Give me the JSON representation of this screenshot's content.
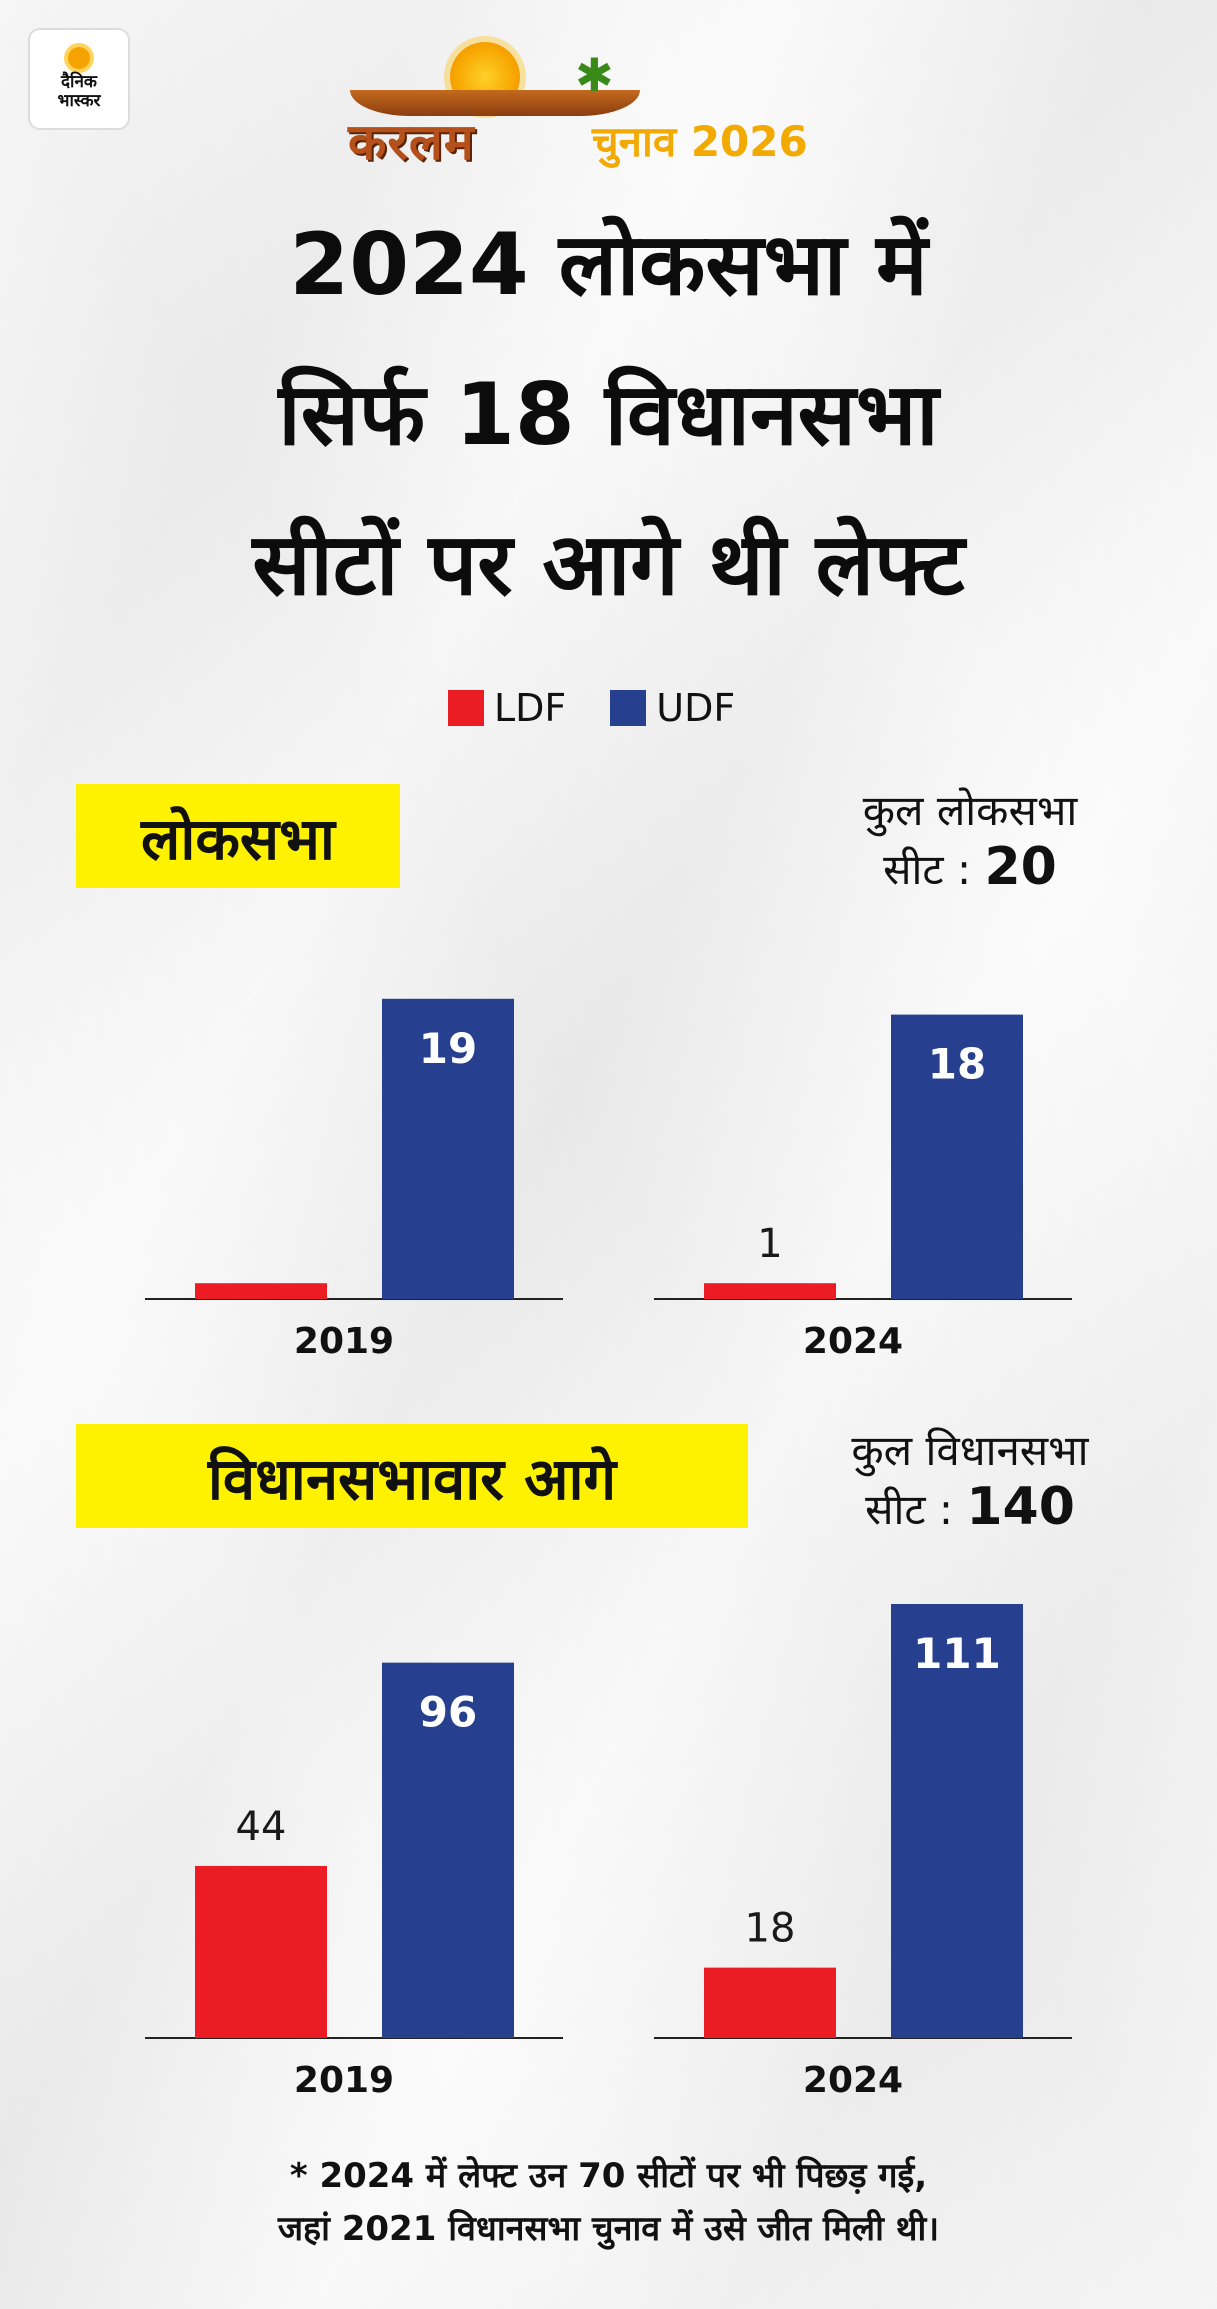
{
  "brand": {
    "logo_line1": "दैनिक",
    "logo_line2": "भास्कर",
    "keralam": "करलम",
    "chunav": "चुनाव 2026"
  },
  "headline": [
    "2024 लोकसभा में",
    "सिर्फ 18 विधानसभा",
    "सीटों पर आगे थी लेफ्ट"
  ],
  "legend": [
    {
      "label": "LDF",
      "color": "#ec1c24"
    },
    {
      "label": "UDF",
      "color": "#263f8f"
    }
  ],
  "sections": [
    {
      "label": "लोकसभा",
      "total_text": "कुल लोकसभा",
      "total_prefix": "सीट :",
      "total_value": "20"
    },
    {
      "label": "विधानसभावार आगे",
      "total_text": "कुल विधानसभा",
      "total_prefix": "सीट :",
      "total_value": "140"
    }
  ],
  "chart_data": [
    {
      "type": "bar",
      "categories": [
        "2019",
        "2024"
      ],
      "series": [
        {
          "name": "LDF",
          "values": [
            1,
            1
          ],
          "labels": [
            "",
            "1"
          ],
          "color": "#ec1c24"
        },
        {
          "name": "UDF",
          "values": [
            19,
            18
          ],
          "labels": [
            "19",
            "18"
          ],
          "color": "#263f8f"
        }
      ]
    },
    {
      "type": "bar",
      "categories": [
        "2019",
        "2024"
      ],
      "series": [
        {
          "name": "LDF",
          "values": [
            44,
            18
          ],
          "labels": [
            "44",
            "18"
          ],
          "color": "#ec1c24"
        },
        {
          "name": "UDF",
          "values": [
            96,
            111
          ],
          "labels": [
            "96",
            "111"
          ],
          "color": "#263f8f"
        }
      ]
    }
  ],
  "footnote": [
    "* 2024 में लेफ्ट उन 70 सीटों पर भी पिछड़ गई,",
    "जहां 2021 विधानसभा चुनाव में उसे जीत मिली थी।"
  ]
}
